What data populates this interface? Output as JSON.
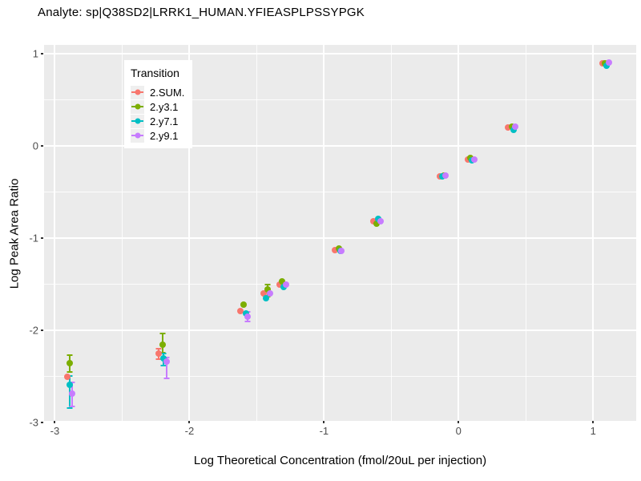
{
  "page": {
    "background": "#FFFFFF",
    "panel_background": "#EBEBEB",
    "grid_color": "#FFFFFF",
    "tick_label_color": "#4D4D4D"
  },
  "chart_data": {
    "type": "scatter",
    "title": "Analyte: sp|Q38SD2|LRRK1_HUMAN.YFIEASPLPSSYPGK",
    "xlabel": "Log Theoretical Concentration (fmol/20uL per injection)",
    "ylabel": "Log Peak Area Ratio",
    "legend_title": "Transition",
    "legend_position": "inside top-left",
    "grid": "major-and-minor",
    "xlim": [
      -3.08,
      1.32
    ],
    "ylim": [
      -2.98,
      1.1
    ],
    "x_major_ticks": [
      -3,
      -2,
      -1,
      0,
      1
    ],
    "x_minor_ticks": [
      -2.5,
      -1.5,
      -0.5,
      0.5
    ],
    "y_major_ticks": [
      1,
      0,
      -1,
      -2,
      -3
    ],
    "y_minor_ticks": [
      0.5,
      -0.5,
      -1.5,
      -2.5
    ],
    "series": [
      {
        "name": "2.SUM.",
        "color": "#F8766D",
        "points": [
          {
            "x": -2.91,
            "y": -2.5
          },
          {
            "x": -2.23,
            "y": -2.25,
            "ylo": -2.31,
            "yhi": -2.2
          },
          {
            "x": -1.62,
            "y": -1.79
          },
          {
            "x": -1.45,
            "y": -1.6
          },
          {
            "x": -1.33,
            "y": -1.5
          },
          {
            "x": -0.92,
            "y": -1.13
          },
          {
            "x": -0.63,
            "y": -0.81
          },
          {
            "x": -0.14,
            "y": -0.33
          },
          {
            "x": 0.07,
            "y": -0.14
          },
          {
            "x": 0.37,
            "y": 0.2
          },
          {
            "x": 1.07,
            "y": 0.9
          }
        ]
      },
      {
        "name": "2.y3.1",
        "color": "#7CAE00",
        "points": [
          {
            "x": -2.89,
            "y": -2.35,
            "ylo": -2.45,
            "yhi": -2.27
          },
          {
            "x": -2.2,
            "y": -2.15,
            "ylo": -2.24,
            "yhi": -2.03
          },
          {
            "x": -1.6,
            "y": -1.72
          },
          {
            "x": -1.42,
            "y": -1.55,
            "ylo": -1.63,
            "yhi": -1.5
          },
          {
            "x": -1.31,
            "y": -1.47
          },
          {
            "x": -0.89,
            "y": -1.11
          },
          {
            "x": -0.61,
            "y": -0.84
          },
          {
            "x": -0.11,
            "y": -0.32
          },
          {
            "x": 0.09,
            "y": -0.13
          },
          {
            "x": 0.4,
            "y": 0.21
          },
          {
            "x": 1.09,
            "y": 0.9
          }
        ]
      },
      {
        "name": "2.y7.1",
        "color": "#00BFC4",
        "points": [
          {
            "x": -2.89,
            "y": -2.59,
            "ylo": -2.84,
            "yhi": -2.49
          },
          {
            "x": -2.19,
            "y": -2.3,
            "ylo": -2.38,
            "yhi": -2.25
          },
          {
            "x": -1.58,
            "y": -1.81
          },
          {
            "x": -1.43,
            "y": -1.65
          },
          {
            "x": -1.3,
            "y": -1.53
          },
          {
            "x": -0.88,
            "y": -1.14
          },
          {
            "x": -0.6,
            "y": -0.79
          },
          {
            "x": -0.12,
            "y": -0.33
          },
          {
            "x": 0.1,
            "y": -0.15
          },
          {
            "x": 0.41,
            "y": 0.18
          },
          {
            "x": 1.1,
            "y": 0.87
          }
        ]
      },
      {
        "name": "2.y9.1",
        "color": "#C77CFF",
        "points": [
          {
            "x": -2.87,
            "y": -2.68,
            "ylo": -2.82,
            "yhi": -2.56
          },
          {
            "x": -2.17,
            "y": -2.34,
            "ylo": -2.52,
            "yhi": -2.29
          },
          {
            "x": -1.57,
            "y": -1.85,
            "ylo": -1.9,
            "yhi": -1.8
          },
          {
            "x": -1.4,
            "y": -1.6
          },
          {
            "x": -1.28,
            "y": -1.5
          },
          {
            "x": -0.87,
            "y": -1.14
          },
          {
            "x": -0.58,
            "y": -0.81
          },
          {
            "x": -0.1,
            "y": -0.32
          },
          {
            "x": 0.12,
            "y": -0.14
          },
          {
            "x": 0.42,
            "y": 0.21
          },
          {
            "x": 1.12,
            "y": 0.91
          }
        ]
      }
    ]
  }
}
